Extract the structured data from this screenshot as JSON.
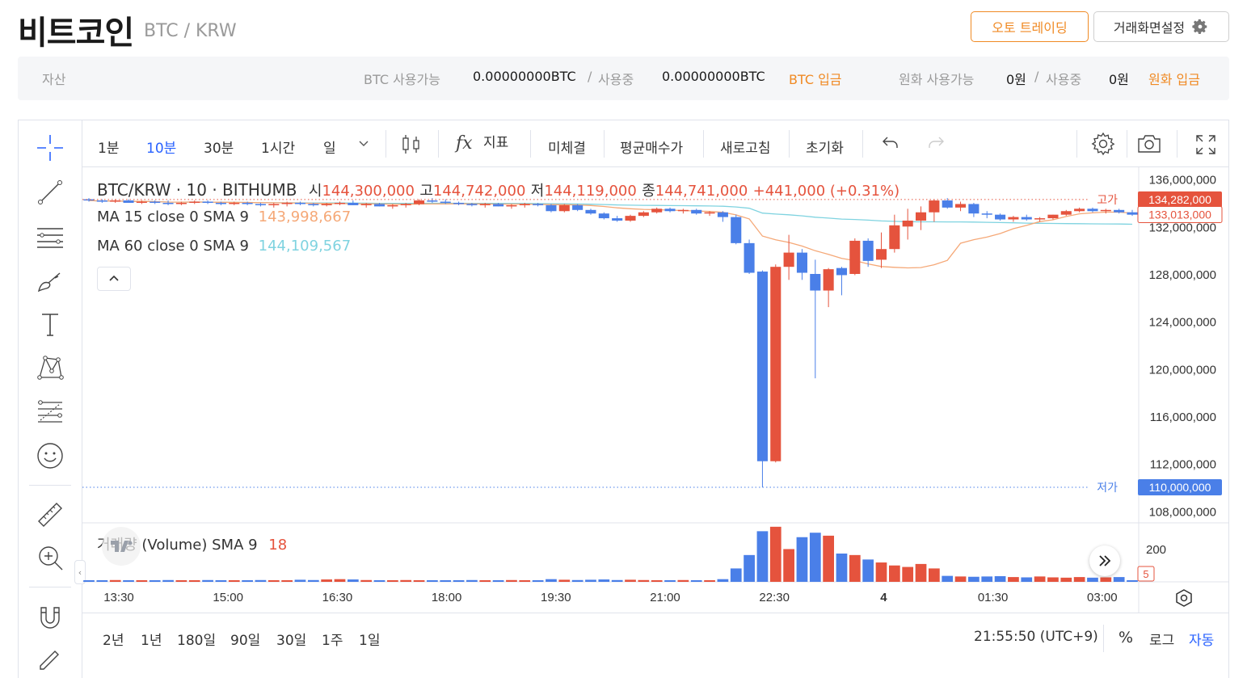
{
  "header": {
    "title": "비트코인",
    "pair": "BTC / KRW",
    "auto_trading_label": "오토 트레이딩",
    "screen_settings_label": "거래화면설정"
  },
  "assets": {
    "label": "자산",
    "btc_available_label": "BTC 사용가능",
    "btc_available_value": "0.00000000BTC",
    "slash": "/",
    "btc_in_use_label": "사용중",
    "btc_in_use_value": "0.00000000BTC",
    "btc_deposit_label": "BTC 입금",
    "krw_available_label": "원화 사용가능",
    "krw_available_value": "0원",
    "krw_in_use_label": "사용중",
    "krw_in_use_value": "0원",
    "krw_deposit_label": "원화 입금"
  },
  "toolbar": {
    "intervals": [
      "1분",
      "10분",
      "30분",
      "1시간",
      "일"
    ],
    "active_interval": "10분",
    "indicator_label": "지표",
    "unfilled_label": "미체결",
    "avg_price_label": "평균매수가",
    "refresh_label": "새로고침",
    "reset_label": "초기화"
  },
  "legend": {
    "symbol": "BTC/KRW · 10 · BITHUMB",
    "open_label": "시",
    "open_value": "144,300,000",
    "high_label": "고",
    "high_value": "144,742,000",
    "low_label": "저",
    "low_value": "144,119,000",
    "close_label": "종",
    "close_value": "144,741,000",
    "change": "+441,000 (+0.31%)",
    "ma15_label": "MA 15 close 0 SMA 9",
    "ma15_value": "143,998,667",
    "ma60_label": "MA 60 close 0 SMA 9",
    "ma60_value": "144,109,567",
    "volume_label": "거래량 (Volume) SMA 9",
    "volume_value": "18"
  },
  "price_axis": {
    "ticks": [
      "136,000,000",
      "132,000,000",
      "128,000,000",
      "124,000,000",
      "120,000,000",
      "116,000,000",
      "112,000,000",
      "108,000,000"
    ],
    "high_marker_label": "고가",
    "high_marker_value": "134,282,000",
    "current_price_value": "133,013,000",
    "low_marker_label": "저가",
    "low_marker_value": "110,000,000"
  },
  "volume_axis": {
    "tick": "200",
    "current_value": "5"
  },
  "time_axis": [
    "13:30",
    "15:00",
    "16:30",
    "18:00",
    "19:30",
    "21:00",
    "22:30",
    "4",
    "01:30",
    "03:00"
  ],
  "bottom": {
    "ranges": [
      "2년",
      "1년",
      "180일",
      "90일",
      "30일",
      "1주",
      "1일"
    ],
    "clock": "21:55:50 (UTC+9)",
    "percent_label": "%",
    "log_label": "로그",
    "auto_label": "자동"
  },
  "colors": {
    "up": "#e5533d",
    "down": "#4a7fe8",
    "ma15": "#f5a877",
    "ma60": "#7fd3e0",
    "accent": "#f08a24",
    "active": "#2962ff"
  },
  "chart_data": {
    "type": "candlestick",
    "time_labels": [
      "13:30",
      "15:00",
      "16:30",
      "18:00",
      "19:30",
      "21:00",
      "22:30",
      "4",
      "01:30",
      "03:00"
    ],
    "y_range": [
      107000000,
      137000000
    ],
    "high_marker": 134282000,
    "low_marker": 110000000,
    "current_price": 133013000,
    "candles": [
      [
        134.3,
        134.4,
        134.1,
        134.2,
        5
      ],
      [
        134.2,
        134.3,
        134.0,
        134.1,
        5
      ],
      [
        134.1,
        134.3,
        134.0,
        134.2,
        6
      ],
      [
        134.2,
        134.3,
        134.0,
        134.0,
        5
      ],
      [
        134.0,
        134.2,
        133.9,
        134.1,
        5
      ],
      [
        134.1,
        134.2,
        133.9,
        134.0,
        5
      ],
      [
        134.0,
        134.2,
        133.8,
        133.9,
        6
      ],
      [
        133.9,
        134.1,
        133.8,
        134.0,
        5
      ],
      [
        134.0,
        134.2,
        133.9,
        134.1,
        5
      ],
      [
        134.1,
        134.2,
        133.9,
        134.0,
        6
      ],
      [
        134.0,
        134.1,
        133.8,
        133.9,
        5
      ],
      [
        133.9,
        134.1,
        133.8,
        134.0,
        5
      ],
      [
        134.0,
        134.1,
        133.8,
        133.9,
        5
      ],
      [
        133.9,
        134.0,
        133.7,
        133.8,
        6
      ],
      [
        133.8,
        134.0,
        133.6,
        133.9,
        5
      ],
      [
        133.9,
        134.1,
        133.7,
        134.0,
        5
      ],
      [
        134.0,
        134.1,
        133.8,
        133.9,
        7
      ],
      [
        133.9,
        134.0,
        133.7,
        133.8,
        6
      ],
      [
        133.8,
        134.0,
        133.7,
        133.9,
        8
      ],
      [
        133.9,
        134.1,
        133.8,
        134.0,
        9
      ],
      [
        134.0,
        134.2,
        133.8,
        133.8,
        8
      ],
      [
        133.8,
        134.0,
        133.6,
        133.9,
        6
      ],
      [
        133.9,
        134.0,
        133.7,
        133.7,
        5
      ],
      [
        133.7,
        133.9,
        133.5,
        133.8,
        5
      ],
      [
        133.8,
        134.0,
        133.6,
        133.9,
        6
      ],
      [
        133.9,
        134.3,
        133.8,
        134.2,
        5
      ],
      [
        134.2,
        134.4,
        134.0,
        134.1,
        5
      ],
      [
        134.1,
        134.3,
        133.9,
        134.0,
        5
      ],
      [
        134.0,
        134.1,
        133.8,
        133.9,
        5
      ],
      [
        133.9,
        134.0,
        133.7,
        133.8,
        6
      ],
      [
        133.8,
        134.0,
        133.6,
        133.9,
        5
      ],
      [
        133.9,
        134.0,
        133.7,
        133.7,
        5
      ],
      [
        133.7,
        133.9,
        133.5,
        133.8,
        6
      ],
      [
        133.8,
        134.0,
        133.6,
        133.9,
        5
      ],
      [
        133.9,
        134.0,
        133.7,
        133.8,
        5
      ],
      [
        133.8,
        133.9,
        133.2,
        133.3,
        9
      ],
      [
        133.3,
        133.9,
        133.2,
        133.8,
        7
      ],
      [
        133.8,
        133.9,
        133.3,
        133.4,
        6
      ],
      [
        133.4,
        133.5,
        133.0,
        133.1,
        7
      ],
      [
        133.1,
        133.2,
        132.6,
        132.7,
        8
      ],
      [
        132.7,
        132.9,
        132.4,
        132.5,
        6
      ],
      [
        132.5,
        133.0,
        132.4,
        132.9,
        7
      ],
      [
        132.9,
        133.3,
        132.8,
        133.2,
        6
      ],
      [
        133.2,
        133.6,
        133.1,
        133.5,
        5
      ],
      [
        133.5,
        133.6,
        133.2,
        133.3,
        5
      ],
      [
        133.3,
        133.5,
        133.1,
        133.4,
        6
      ],
      [
        133.4,
        133.5,
        133.0,
        133.1,
        5
      ],
      [
        133.1,
        133.3,
        132.9,
        133.2,
        5
      ],
      [
        133.2,
        133.3,
        132.4,
        132.8,
        9
      ],
      [
        132.8,
        133.0,
        130.5,
        130.6,
        45
      ],
      [
        130.6,
        130.9,
        128.0,
        128.1,
        90
      ],
      [
        128.2,
        128.3,
        110.0,
        112.2,
        170
      ],
      [
        112.2,
        128.8,
        112.1,
        128.6,
        185
      ],
      [
        128.6,
        131.3,
        127.5,
        129.8,
        110
      ],
      [
        129.8,
        130.1,
        127.5,
        128.1,
        150
      ],
      [
        128.0,
        129.2,
        119.2,
        126.6,
        165
      ],
      [
        126.6,
        128.5,
        125.2,
        128.4,
        155
      ],
      [
        128.5,
        128.6,
        126.2,
        127.9,
        95
      ],
      [
        128.0,
        131.0,
        127.9,
        130.8,
        90
      ],
      [
        130.8,
        131.0,
        128.6,
        129.1,
        75
      ],
      [
        129.2,
        131.5,
        128.5,
        130.1,
        65
      ],
      [
        130.1,
        133.0,
        129.8,
        132.1,
        55
      ],
      [
        132.0,
        133.5,
        130.9,
        132.5,
        50
      ],
      [
        132.5,
        133.7,
        131.7,
        133.2,
        60
      ],
      [
        133.2,
        134.3,
        132.4,
        134.2,
        45
      ],
      [
        134.2,
        134.4,
        133.5,
        133.6,
        20
      ],
      [
        133.6,
        134.1,
        133.3,
        133.9,
        18
      ],
      [
        133.9,
        134.0,
        132.8,
        133.1,
        17
      ],
      [
        133.1,
        133.3,
        132.7,
        133.0,
        18
      ],
      [
        133.0,
        133.1,
        132.5,
        132.6,
        19
      ],
      [
        132.6,
        132.9,
        132.4,
        132.8,
        16
      ],
      [
        132.8,
        133.0,
        132.5,
        132.6,
        15
      ],
      [
        132.6,
        132.8,
        132.4,
        132.7,
        18
      ],
      [
        132.7,
        133.0,
        132.6,
        133.0,
        15
      ],
      [
        133.0,
        133.4,
        132.9,
        133.3,
        14
      ],
      [
        133.3,
        133.6,
        133.2,
        133.5,
        16
      ],
      [
        133.5,
        133.6,
        133.2,
        133.3,
        14
      ],
      [
        133.3,
        133.5,
        133.1,
        133.4,
        15
      ],
      [
        133.4,
        133.5,
        133.1,
        133.2,
        16
      ],
      [
        133.2,
        133.4,
        132.9,
        133.0,
        5
      ]
    ]
  }
}
